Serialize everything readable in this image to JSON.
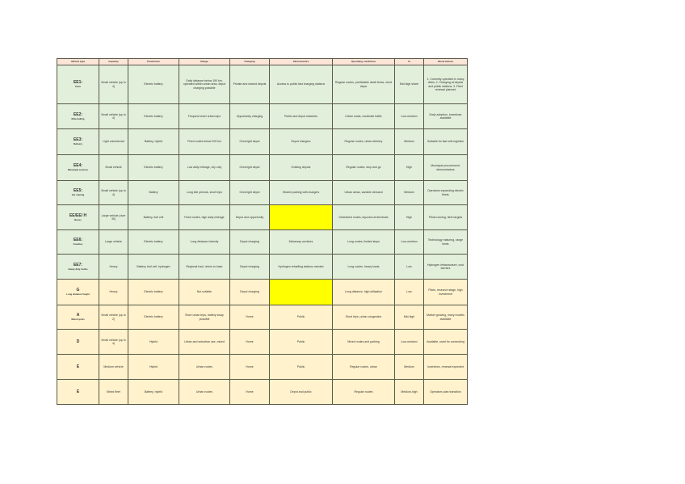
{
  "headers": [
    "Vehicle type",
    "Capacity",
    "Powertrain",
    "Range",
    "Charging",
    "Infrastructure",
    "Operating conditions",
    "%",
    "Observations"
  ],
  "colors": {
    "green": "#e2efda",
    "orange": "#fff2cc",
    "highlight": "#ffff00",
    "header": "#fce4d6"
  },
  "rows": [
    {
      "tone": "g",
      "label": "EE1:",
      "sub": "Taxis",
      "cells": [
        "Small vehicle (up to 4)",
        "Electric battery",
        "Daily distance below 150 km, operated within urban area, depot charging possible",
        "Private and shared depots",
        "Access to public fast charging stations",
        "Regular routes, predictable dwell times, short stops",
        "Mid-high share",
        "1. Currently operated in many cities; 2. Charging at depots and public stations; 3. Fleet renewal planned"
      ],
      "hl": false
    },
    {
      "tone": "g",
      "label": "EE2:",
      "sub": "Ride-hailing",
      "cells": [
        "Small vehicle (up to 4)",
        "Electric battery",
        "Frequent short urban trips",
        "Opportunity charging",
        "Public and depot networks",
        "Urban roads, moderate traffic",
        "Low-medium",
        "Early adoption, incentives available"
      ],
      "hl": false
    },
    {
      "tone": "g",
      "label": "EE3:",
      "sub": "Delivery",
      "cells": [
        "Light commercial",
        "Battery, hybrid",
        "Fixed routes below 200 km",
        "Overnight depot",
        "Depot chargers",
        "Regular routes, urban delivery",
        "Medium",
        "Suitable for last mile logistics"
      ],
      "hl": false
    },
    {
      "tone": "g",
      "label": "EE4:",
      "sub": "Municipal services",
      "cells": [
        "Small vehicle",
        "Electric battery",
        "Low daily mileage, city only",
        "Overnight depot",
        "Existing depots",
        "Regular routes, stop and go",
        "High",
        "Municipal procurement, demonstrators"
      ],
      "hl": false
    },
    {
      "tone": "g",
      "label": "EE5:",
      "sub": "Car sharing",
      "cells": [
        "Small vehicle (up to 4)",
        "Battery",
        "Long idle periods, short trips",
        "Overnight depot",
        "Shared parking with chargers",
        "Urban areas, variable demand",
        "Medium",
        "Operators expanding electric fleets"
      ],
      "hl": false
    },
    {
      "tone": "g",
      "label": "EE/EE/ H",
      "sub": "Buses",
      "cells": [
        "Large vehicle (over 30)",
        "Battery, fuel cell",
        "Fixed routes, high daily mileage",
        "Depot and opportunity",
        "",
        "Scheduled routes, layovers at terminals",
        "High",
        "Pilots running, fleet targets"
      ],
      "hl": true
    },
    {
      "tone": "g",
      "label": "EE6:",
      "sub": "Coaches",
      "cells": [
        "Large vehicle",
        "Electric battery",
        "Long distance intercity",
        "Depot charging",
        "Motorway corridors",
        "Long routes, limited stops",
        "Low-medium",
        "Technology maturing, range limits"
      ],
      "hl": false
    },
    {
      "tone": "g",
      "label": "EE7:",
      "sub": "Heavy duty trucks",
      "cells": [
        "Heavy",
        "Battery, fuel cell, hydrogen",
        "Regional haul, return to base",
        "Depot charging",
        "Hydrogen refuelling stations needed",
        "Long routes, heavy loads",
        "Low",
        "Hydrogen infrastructure, cost barriers"
      ],
      "hl": false
    },
    {
      "tone": "o",
      "label": "G",
      "sub": "Long distance freight",
      "cells": [
        "Heavy",
        "Electric battery",
        "Not suitable",
        "Depot charging",
        "",
        "Long distance, high utilisation",
        "Low",
        "Pilots, research stage, high investment"
      ],
      "hl": true
    },
    {
      "tone": "o",
      "label": "A",
      "sub": "Motorcycles",
      "cells": [
        "Small vehicle (up to 2)",
        "Electric battery",
        "Short urban trips, battery swap possible",
        "Home",
        "Public",
        "Short trips, urban congestion",
        "Mid-high",
        "Market growing, many models available"
      ],
      "hl": false
    },
    {
      "tone": "o",
      "label": "D",
      "sub": "",
      "cells": [
        "Small vehicle (up to 4)",
        "Hybrid",
        "Urban and suburban use, mixed",
        "Home",
        "Public",
        "Mixed routes and parking",
        "Low-medium",
        "Available, used for commuting"
      ],
      "hl": false
    },
    {
      "tone": "o",
      "label": "E",
      "sub": "",
      "cells": [
        "Medium vehicle",
        "Hybrid",
        "Urban routes",
        "Home",
        "Public",
        "Regular routes, urban",
        "Medium",
        "Incentives, renewal expected"
      ],
      "hl": false
    },
    {
      "tone": "o",
      "label": "E",
      "sub": "",
      "cells": [
        "Mixed fleet",
        "Battery, hybrid",
        "Urban routes",
        "Home",
        "Depot and public",
        "Regular routes",
        "Medium-high",
        "Operators plan transition"
      ],
      "hl": false
    }
  ]
}
